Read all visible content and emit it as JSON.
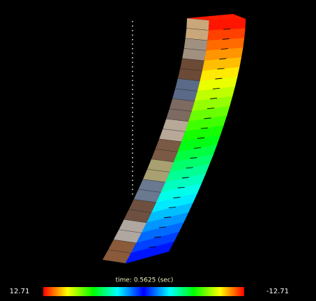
{
  "time_label": "time: 0.5625 (sec)",
  "colorbar": {
    "left_label": "12.71",
    "right_label": "-12.71"
  }
}
